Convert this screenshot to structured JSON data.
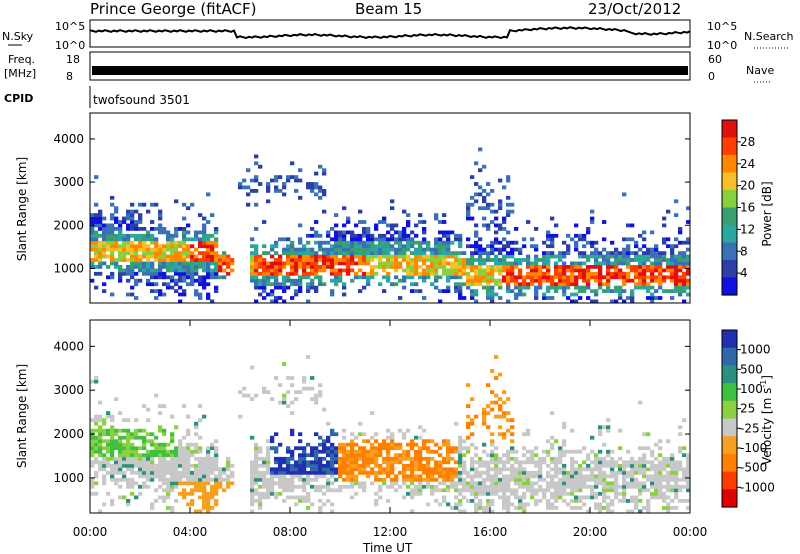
{
  "header": {
    "station": "Prince George (fitACF)",
    "beam": "Beam 15",
    "date": "23/Oct/2012"
  },
  "strip_sky": {
    "left_label": "N.Sky",
    "left_ticks": [
      "10^5",
      "10^0"
    ],
    "right_ticks": [
      "10^5",
      "10^0"
    ],
    "right_label": "N.Search"
  },
  "strip_freq": {
    "left_label_1": "Freq.",
    "left_label_2": "[MHz]",
    "left_ticks": [
      "18",
      "8"
    ],
    "right_ticks": [
      "60",
      "0"
    ],
    "right_label": "Nave"
  },
  "strip_cpid": {
    "left_label": "CPID",
    "text": "twofsound 3501"
  },
  "chart_data": [
    {
      "type": "heatmap",
      "id": "power",
      "ylabel": "Slant Range [km]",
      "yticks": [
        1000,
        2000,
        3000,
        4000
      ],
      "ylim": [
        200,
        4600
      ],
      "xlim": [
        0,
        24
      ],
      "colorbar": {
        "label": "Power [dB]",
        "ticks": [
          "28",
          "24",
          "20",
          "16",
          "12",
          "8",
          "4"
        ],
        "colors": [
          "#e01010",
          "#ff4000",
          "#ff8800",
          "#f7c028",
          "#88d040",
          "#38a070",
          "#2aa7a0",
          "#3a70b8",
          "#2c3fa8",
          "#1010e0"
        ]
      }
    },
    {
      "type": "heatmap",
      "id": "velocity",
      "ylabel": "Slant Range [km]",
      "yticks": [
        1000,
        2000,
        3000,
        4000
      ],
      "ylim": [
        200,
        4600
      ],
      "xlim": [
        0,
        24
      ],
      "xticks": [
        "00:00",
        "04:00",
        "08:00",
        "12:00",
        "16:00",
        "20:00",
        "00:00"
      ],
      "xlabel": "Time UT",
      "colorbar": {
        "label_main": "Velocity  [m s",
        "label_sup": "-1",
        "label_end": "]",
        "ticks": [
          "1000",
          "500",
          "100",
          "25",
          "-25",
          "-100",
          "-500",
          "-1000"
        ],
        "colors": [
          "#2030b0",
          "#2e68a8",
          "#2a9080",
          "#40c040",
          "#8ad040",
          "#c8c8c8",
          "#f5a020",
          "#ff8000",
          "#ff3c00",
          "#e00000"
        ]
      }
    }
  ]
}
